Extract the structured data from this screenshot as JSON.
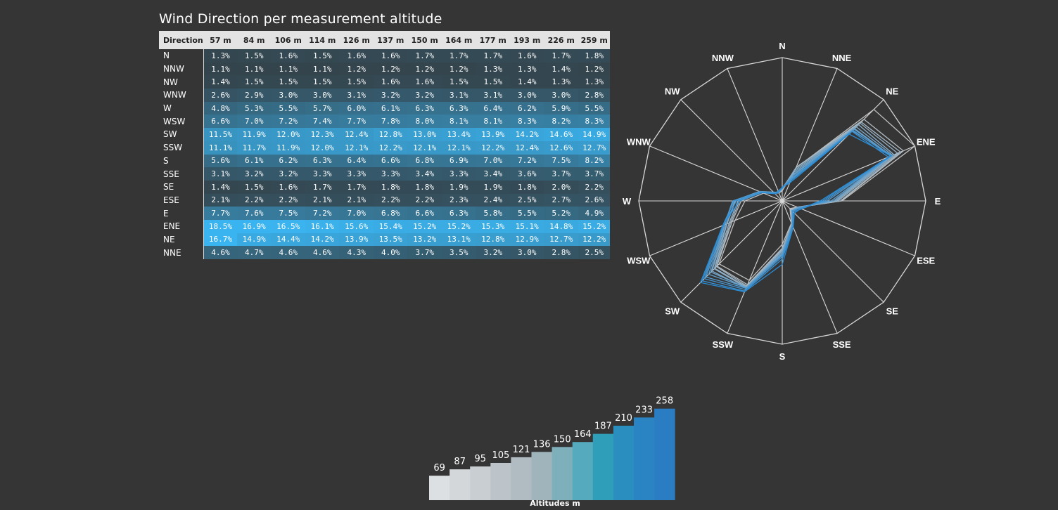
{
  "title": "Wind Direction per measurement altitude",
  "table": {
    "direction_header": "Direction",
    "altitude_headers": [
      "57 m",
      "84 m",
      "106 m",
      "114 m",
      "126 m",
      "137 m",
      "150 m",
      "164 m",
      "177 m",
      "193 m",
      "226 m",
      "259 m"
    ],
    "rows": [
      {
        "direction": "N",
        "values": [
          "1.3%",
          "1.5%",
          "1.6%",
          "1.5%",
          "1.6%",
          "1.6%",
          "1.7%",
          "1.7%",
          "1.7%",
          "1.6%",
          "1.7%",
          "1.8%"
        ]
      },
      {
        "direction": "NNW",
        "values": [
          "1.1%",
          "1.1%",
          "1.1%",
          "1.1%",
          "1.2%",
          "1.2%",
          "1.2%",
          "1.2%",
          "1.3%",
          "1.3%",
          "1.4%",
          "1.2%"
        ]
      },
      {
        "direction": "NW",
        "values": [
          "1.4%",
          "1.5%",
          "1.5%",
          "1.5%",
          "1.5%",
          "1.6%",
          "1.6%",
          "1.5%",
          "1.5%",
          "1.4%",
          "1.3%",
          "1.3%"
        ]
      },
      {
        "direction": "WNW",
        "values": [
          "2.6%",
          "2.9%",
          "3.0%",
          "3.0%",
          "3.1%",
          "3.2%",
          "3.2%",
          "3.1%",
          "3.1%",
          "3.0%",
          "3.0%",
          "2.8%"
        ]
      },
      {
        "direction": "W",
        "values": [
          "4.8%",
          "5.3%",
          "5.5%",
          "5.7%",
          "6.0%",
          "6.1%",
          "6.3%",
          "6.3%",
          "6.4%",
          "6.2%",
          "5.9%",
          "5.5%"
        ]
      },
      {
        "direction": "WSW",
        "values": [
          "6.6%",
          "7.0%",
          "7.2%",
          "7.4%",
          "7.7%",
          "7.8%",
          "8.0%",
          "8.1%",
          "8.1%",
          "8.3%",
          "8.2%",
          "8.3%"
        ]
      },
      {
        "direction": "SW",
        "values": [
          "11.5%",
          "11.9%",
          "12.0%",
          "12.3%",
          "12.4%",
          "12.8%",
          "13.0%",
          "13.4%",
          "13.9%",
          "14.2%",
          "14.6%",
          "14.9%"
        ]
      },
      {
        "direction": "SSW",
        "values": [
          "11.1%",
          "11.7%",
          "11.9%",
          "12.0%",
          "12.1%",
          "12.2%",
          "12.1%",
          "12.1%",
          "12.2%",
          "12.4%",
          "12.6%",
          "12.7%"
        ]
      },
      {
        "direction": "S",
        "values": [
          "5.6%",
          "6.1%",
          "6.2%",
          "6.3%",
          "6.4%",
          "6.6%",
          "6.8%",
          "6.9%",
          "7.0%",
          "7.2%",
          "7.5%",
          "8.2%"
        ]
      },
      {
        "direction": "SSE",
        "values": [
          "3.1%",
          "3.2%",
          "3.2%",
          "3.3%",
          "3.3%",
          "3.3%",
          "3.4%",
          "3.3%",
          "3.4%",
          "3.6%",
          "3.7%",
          "3.7%"
        ]
      },
      {
        "direction": "SE",
        "values": [
          "1.4%",
          "1.5%",
          "1.6%",
          "1.7%",
          "1.7%",
          "1.8%",
          "1.8%",
          "1.9%",
          "1.9%",
          "1.8%",
          "2.0%",
          "2.2%"
        ]
      },
      {
        "direction": "ESE",
        "values": [
          "2.1%",
          "2.2%",
          "2.2%",
          "2.1%",
          "2.1%",
          "2.2%",
          "2.2%",
          "2.3%",
          "2.4%",
          "2.5%",
          "2.7%",
          "2.6%"
        ]
      },
      {
        "direction": "E",
        "values": [
          "7.7%",
          "7.6%",
          "7.5%",
          "7.2%",
          "7.0%",
          "6.8%",
          "6.6%",
          "6.3%",
          "5.8%",
          "5.5%",
          "5.2%",
          "4.9%"
        ]
      },
      {
        "direction": "ENE",
        "values": [
          "18.5%",
          "16.9%",
          "16.5%",
          "16.1%",
          "15.6%",
          "15.4%",
          "15.2%",
          "15.2%",
          "15.3%",
          "15.1%",
          "14.8%",
          "15.2%"
        ]
      },
      {
        "direction": "NE",
        "values": [
          "16.7%",
          "14.9%",
          "14.4%",
          "14.2%",
          "13.9%",
          "13.5%",
          "13.2%",
          "13.1%",
          "12.8%",
          "12.9%",
          "12.7%",
          "12.2%"
        ]
      },
      {
        "direction": "NNE",
        "values": [
          "4.6%",
          "4.7%",
          "4.6%",
          "4.6%",
          "4.3%",
          "4.0%",
          "3.7%",
          "3.5%",
          "3.2%",
          "3.0%",
          "2.8%",
          "2.5%"
        ]
      }
    ]
  },
  "colors": {
    "background": "#353535",
    "header_bg": "#e3e3e3",
    "heat_low": "#333333",
    "heat_high": "#3ab4f0",
    "grid": "#d8d8d8",
    "altitude_gradient": [
      "#dde0e2",
      "#d3d7da",
      "#c8ced2",
      "#bcc4c9",
      "#b0bcc1",
      "#9fb4bb",
      "#7eb0bc",
      "#55aabd",
      "#2f9fb9",
      "#2a8fbf",
      "#2a84c3",
      "#2a7dc2"
    ]
  },
  "chart_data": [
    {
      "type": "radar",
      "directions": [
        "N",
        "NNE",
        "NE",
        "ENE",
        "E",
        "ESE",
        "SE",
        "SSE",
        "S",
        "SSW",
        "SW",
        "WSW",
        "W",
        "WNW",
        "NW",
        "NNW"
      ],
      "range": [
        0,
        18.5
      ],
      "series_source": "table columns (one line per measurement altitude)"
    },
    {
      "type": "bar",
      "values": [
        69,
        87,
        95,
        105,
        121,
        136,
        150,
        164,
        187,
        210,
        233,
        258
      ],
      "xlabel": "Altitudes m"
    }
  ]
}
